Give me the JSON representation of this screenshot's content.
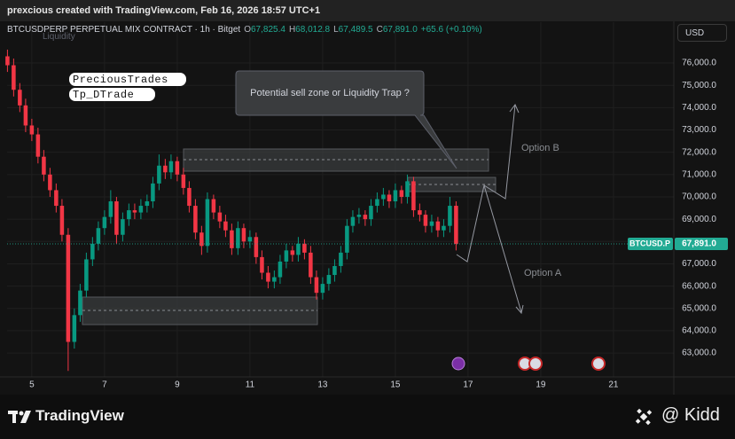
{
  "header": "prexcious created with TradingView.com, Feb 16, 2026 18:57 UTC+1",
  "chart_data": {
    "type": "candlestick",
    "symbol": "BTCUSDPERP PERPETUAL MIX CONTRACT · 1h · Bitget",
    "ohlc_legend": [
      {
        "label": "O",
        "value": "67,825.4"
      },
      {
        "label": "H",
        "value": "68,012.8"
      },
      {
        "label": "L",
        "value": "67,489.5"
      },
      {
        "label": "C",
        "value": "67,891.0"
      }
    ],
    "change": "+65.6 (+0.10%)",
    "currency": "USD",
    "indicator": "Liquidity",
    "x": [
      4.33,
      4.5,
      4.67,
      4.83,
      5,
      5.17,
      5.33,
      5.5,
      5.67,
      5.83,
      6,
      6.17,
      6.33,
      6.5,
      6.67,
      6.83,
      7,
      7.17,
      7.33,
      7.5,
      7.67,
      7.83,
      8,
      8.17,
      8.33,
      8.5,
      8.67,
      8.83,
      9,
      9.17,
      9.33,
      9.5,
      9.67,
      9.83,
      10,
      10.17,
      10.33,
      10.5,
      10.67,
      10.83,
      11,
      11.17,
      11.33,
      11.5,
      11.67,
      11.83,
      12,
      12.17,
      12.33,
      12.5,
      12.67,
      12.83,
      13,
      13.17,
      13.33,
      13.5,
      13.67,
      13.83,
      14,
      14.17,
      14.33,
      14.5,
      14.67,
      14.83,
      15,
      15.17,
      15.33,
      15.5,
      15.67,
      15.83,
      16,
      16.17,
      16.33,
      16.5,
      16.67
    ],
    "open": [
      76300,
      75900,
      74800,
      74100,
      73200,
      72800,
      71800,
      71000,
      70300,
      69600,
      68300,
      63500,
      64700,
      65800,
      67200,
      67900,
      68600,
      69100,
      69800,
      68300,
      69000,
      69400,
      69300,
      69600,
      69800,
      70600,
      71400,
      71100,
      71600,
      71000,
      70400,
      69600,
      68400,
      67800,
      69900,
      69300,
      68900,
      68500,
      67700,
      68600,
      68000,
      68200,
      67300,
      66600,
      66200,
      66400,
      67100,
      67600,
      67400,
      67900,
      67500,
      66400,
      65700,
      66100,
      66500,
      66900,
      67500,
      68700,
      69100,
      69200,
      69000,
      69600,
      69900,
      70100,
      69800,
      70300,
      70000,
      70700,
      69400,
      69200,
      68700,
      68900,
      68500,
      68700,
      69600
    ],
    "high": [
      76600,
      76200,
      75100,
      74400,
      73500,
      73100,
      72100,
      71300,
      70600,
      69900,
      68600,
      65000,
      66100,
      67500,
      68200,
      68900,
      69400,
      70300,
      70000,
      69300,
      69700,
      69700,
      69900,
      70100,
      70900,
      71900,
      71700,
      71900,
      71800,
      71300,
      70700,
      69900,
      68700,
      70200,
      70100,
      69600,
      69200,
      68800,
      68900,
      68800,
      68500,
      68400,
      67600,
      66900,
      66700,
      67400,
      67900,
      67800,
      68200,
      68100,
      67800,
      66700,
      66400,
      66800,
      67200,
      67800,
      69000,
      69400,
      69500,
      69400,
      69900,
      70200,
      70400,
      70300,
      70600,
      70500,
      71000,
      70900,
      69700,
      69400,
      69200,
      69100,
      69000,
      70000,
      69800
    ],
    "low": [
      75600,
      74500,
      73800,
      72900,
      72500,
      71500,
      70700,
      70000,
      69300,
      68000,
      62200,
      63200,
      64400,
      65500,
      66900,
      67600,
      68300,
      68800,
      67900,
      68000,
      68700,
      69000,
      69000,
      69300,
      69500,
      70300,
      70800,
      70800,
      70700,
      70100,
      69300,
      68100,
      67400,
      67500,
      69000,
      68600,
      68200,
      67400,
      67400,
      67700,
      67700,
      67000,
      66300,
      65900,
      65900,
      66100,
      66800,
      67100,
      67100,
      67200,
      66100,
      65400,
      65400,
      65800,
      66200,
      66600,
      67200,
      68400,
      68800,
      68700,
      68700,
      69300,
      69600,
      69500,
      69500,
      69700,
      69700,
      69100,
      68900,
      68400,
      68400,
      68200,
      68200,
      68400,
      67600
    ],
    "close": [
      75900,
      74800,
      74100,
      73200,
      72800,
      71800,
      71000,
      70300,
      69600,
      68300,
      63500,
      64700,
      65800,
      67200,
      67900,
      68600,
      69100,
      69800,
      68300,
      69000,
      69400,
      69300,
      69600,
      69800,
      70600,
      71400,
      71100,
      71600,
      71000,
      70400,
      69600,
      68400,
      67800,
      69900,
      69300,
      68900,
      68500,
      67700,
      68600,
      68000,
      68200,
      67300,
      66600,
      66200,
      66400,
      67100,
      67600,
      67400,
      67900,
      67500,
      66400,
      65700,
      66100,
      66500,
      66900,
      67500,
      68700,
      69100,
      69200,
      69000,
      69600,
      69900,
      70100,
      69800,
      70300,
      70000,
      70700,
      69400,
      69200,
      68700,
      68900,
      68500,
      68700,
      69600,
      67891
    ],
    "up_color": "#089981",
    "down_color": "#f23645",
    "xlim": [
      4.32,
      22.66
    ],
    "xticks": [
      5,
      7,
      9,
      11,
      13,
      15,
      17,
      19,
      21
    ],
    "ylim": [
      61930,
      77830
    ],
    "yticks": [
      {
        "value": 63000,
        "label": "63,000.0"
      },
      {
        "value": 64000,
        "label": "64,000.0"
      },
      {
        "value": 65000,
        "label": "65,000.0"
      },
      {
        "value": 66000,
        "label": "66,000.0"
      },
      {
        "value": 67000,
        "label": "67,000.0"
      },
      {
        "value": 68000,
        "label": "68,000.0"
      },
      {
        "value": 69000,
        "label": "69,000.0"
      },
      {
        "value": 70000,
        "label": "70,000.0"
      },
      {
        "value": 71000,
        "label": "71,000.0"
      },
      {
        "value": 72000,
        "label": "72,000.0"
      },
      {
        "value": 73000,
        "label": "73,000.0"
      },
      {
        "value": 74000,
        "label": "74,000.0"
      },
      {
        "value": 75000,
        "label": "75,000.0"
      },
      {
        "value": 76000,
        "label": "76,000.0"
      }
    ],
    "grid": true,
    "last_price": {
      "name": "BTCUSD.P",
      "value": 67891,
      "label": "67,891.0",
      "color": "#22ab94"
    },
    "annotations": {
      "tags": [
        "PreciousTrades",
        "Tp_DTrade"
      ],
      "callout": "Potential sell zone or Liquidity Trap ?",
      "option_a": "Option A",
      "option_b": "Option B"
    }
  },
  "footer": {
    "brand": "TradingView",
    "author": "@ Kidd"
  }
}
